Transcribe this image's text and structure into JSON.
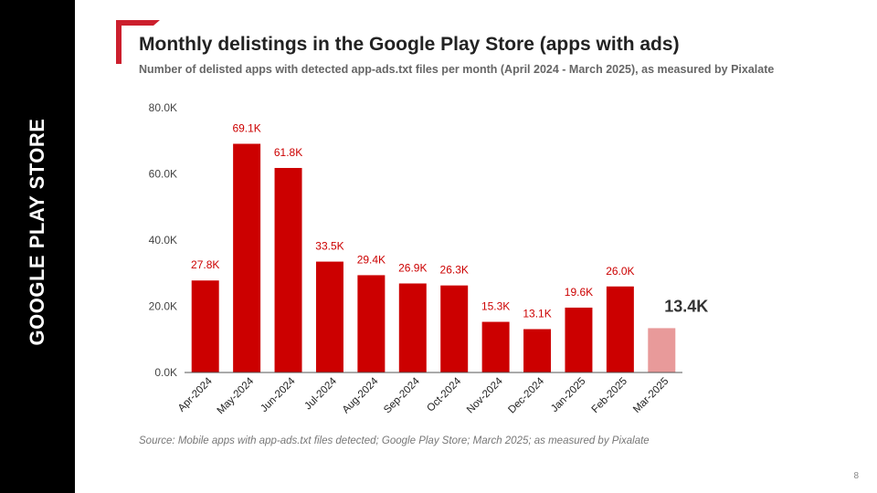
{
  "sidebar": {
    "label": "GOOGLE PLAY STORE"
  },
  "header": {
    "title": "Monthly delistings in the Google Play Store (apps with ads)",
    "subtitle": "Number of delisted apps with detected app-ads.txt files per month (April 2024 - March 2025), as measured by Pixalate"
  },
  "footer": {
    "source": "Source: Mobile apps with app-ads.txt files detected; Google Play Store; March 2025; as measured by Pixalate",
    "page_number": "8"
  },
  "colors": {
    "bar": "#cc0000",
    "bar_highlight": "#e89a9a",
    "label": "#cc0000",
    "highlight_label": "#333333",
    "axis": "#444444",
    "sidebar": "#000000"
  },
  "chart_data": {
    "type": "bar",
    "categories": [
      "Apr-2024",
      "May-2024",
      "Jun-2024",
      "Jul-2024",
      "Aug-2024",
      "Sep-2024",
      "Oct-2024",
      "Nov-2024",
      "Dec-2024",
      "Jan-2025",
      "Feb-2025",
      "Mar-2025"
    ],
    "values": [
      27.8,
      69.1,
      61.8,
      33.5,
      29.4,
      26.9,
      26.3,
      15.3,
      13.1,
      19.6,
      26.0,
      13.4
    ],
    "data_labels": [
      "27.8K",
      "69.1K",
      "61.8K",
      "33.5K",
      "29.4K",
      "26.9K",
      "26.3K",
      "15.3K",
      "13.1K",
      "19.6K",
      "26.0K",
      "13.4K"
    ],
    "highlight_index": 11,
    "unit": "thousands of apps",
    "ylim": [
      0,
      80
    ],
    "yticks": [
      0,
      20,
      40,
      60,
      80
    ],
    "ytick_labels": [
      "0.0K",
      "20.0K",
      "40.0K",
      "60.0K",
      "80.0K"
    ],
    "xlabel": "",
    "ylabel": "",
    "grid": false
  }
}
